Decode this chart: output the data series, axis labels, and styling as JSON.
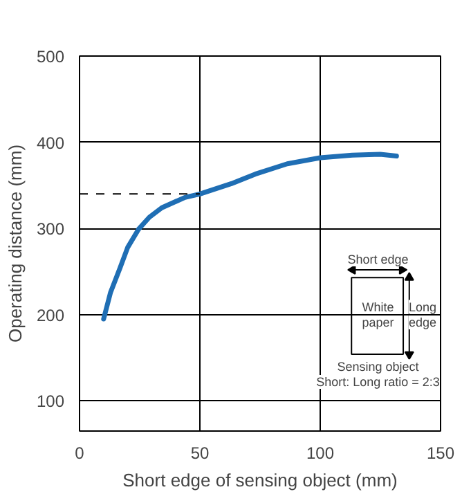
{
  "chart_data": {
    "type": "line",
    "xlabel": "Short edge of sensing object (mm)",
    "ylabel": "Operating distance (mm)",
    "x": [
      10,
      12.9,
      16.8,
      20,
      24.5,
      29,
      34.2,
      43.8,
      50,
      63.1,
      73,
      86.3,
      100,
      113.3,
      124.9,
      131.7
    ],
    "series": [
      {
        "color": "#1f6eb4",
        "values": [
          195,
          226,
          254,
          278,
          299,
          313,
          324,
          336,
          340,
          352,
          363,
          375,
          382,
          385,
          386,
          384
        ]
      }
    ],
    "xlim": [
      0,
      150
    ],
    "xticks": [
      0,
      50,
      100,
      150
    ],
    "ylim": [
      65,
      500
    ],
    "yticks": [
      100,
      200,
      300,
      400,
      500
    ],
    "grid": true,
    "line_style": "solid",
    "ref_lines": [
      {
        "axis": "y",
        "value": 340,
        "line_style": "dashed",
        "label": null
      }
    ],
    "annotations": [
      "Short edge",
      "White paper",
      "Long edge",
      "Sensing object",
      "Short: Long ratio = 2:3"
    ]
  }
}
